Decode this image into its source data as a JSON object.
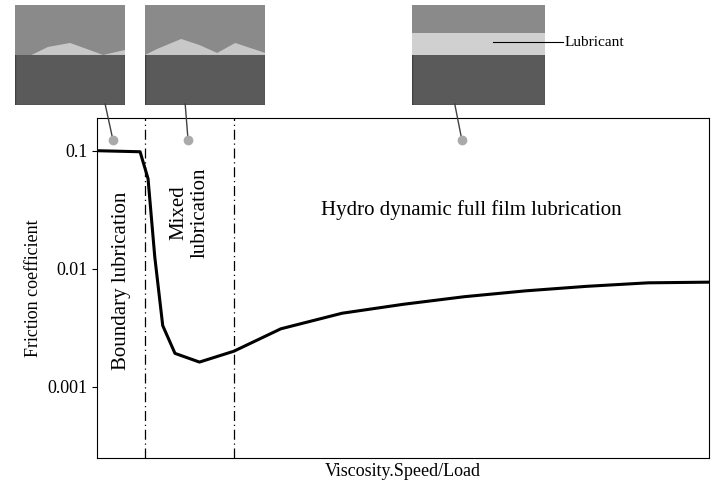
{
  "chart_data": {
    "type": "line",
    "x_label": "Viscosity.Speed/Load",
    "y_label": "Friction coefficient",
    "log": "y",
    "tick_labels": "y",
    "xlim": [
      0,
      100
    ],
    "xticks": [],
    "ylim": [
      0.00025,
      0.19
    ],
    "yticks": [
      0.001,
      0.01,
      0.1
    ],
    "series": [
      {
        "name": "Friction coefficient",
        "color": "#000000",
        "x": [
          0,
          7,
          8.3,
          9.4,
          10.7,
          12.7,
          16.7,
          22.3,
          30,
          40,
          50,
          60,
          70,
          80,
          90,
          100
        ],
        "values": [
          0.1,
          0.098,
          0.058,
          0.0126,
          0.0033,
          0.00192,
          0.00162,
          0.002,
          0.0031,
          0.0042,
          0.005,
          0.0058,
          0.0065,
          0.0071,
          0.0076,
          0.0077
        ]
      }
    ],
    "regions": [
      {
        "label": "Boundary lubrication",
        "start": 0,
        "end": 7.8
      },
      {
        "label": "Mixed\nlubrication",
        "start": 7.8,
        "end": 22.3
      },
      {
        "label": "Hydro dynamic full film lubrication",
        "start": 22.3,
        "end": 100
      }
    ],
    "annotations": [
      "Lubricant"
    ]
  }
}
